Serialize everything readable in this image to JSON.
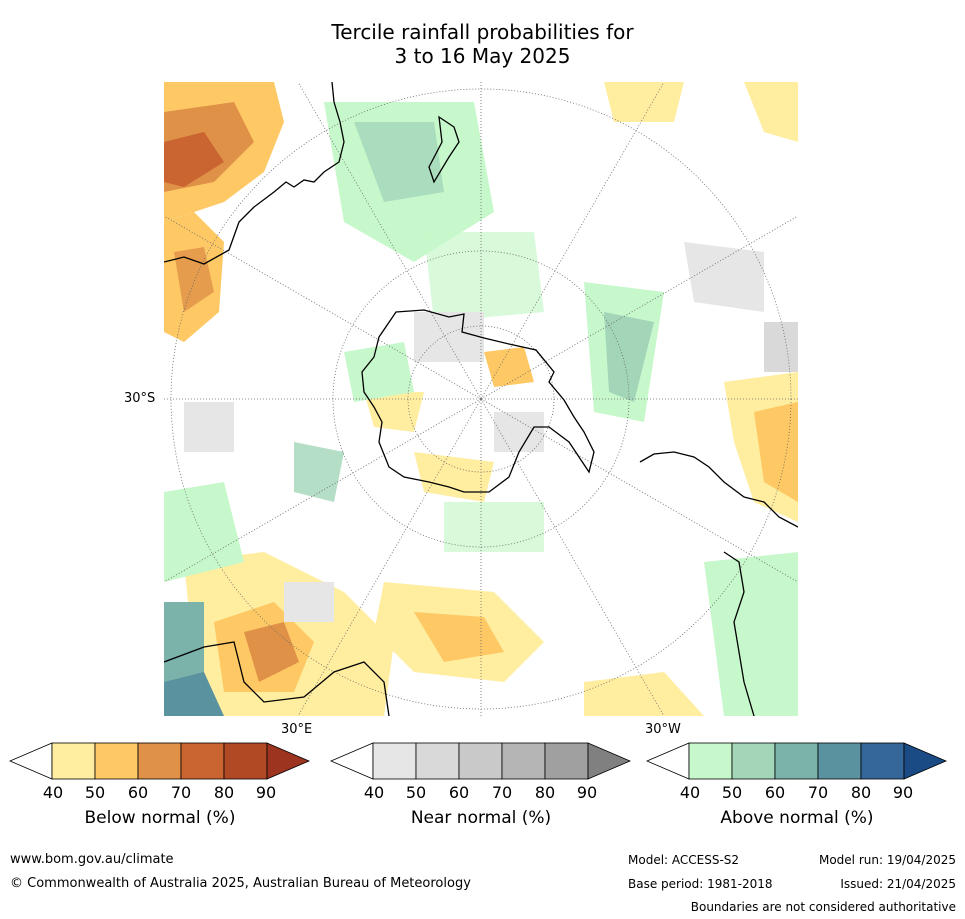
{
  "title": {
    "line1": "Tercile rainfall probabilities for",
    "line2": "3 to 16 May 2025"
  },
  "map": {
    "projection": "south-polar-stereographic",
    "lat_label": "30°S",
    "lon_label_east": "30°E",
    "lon_label_west": "30°W"
  },
  "colorbars": [
    {
      "name": "below",
      "label": "Below normal (%)",
      "ticks": [
        "40",
        "50",
        "60",
        "70",
        "80",
        "90"
      ],
      "colors": [
        "#ffffff",
        "#ffeda0",
        "#fec965",
        "#df9147",
        "#ca6431",
        "#b24925",
        "#9c3420"
      ]
    },
    {
      "name": "near",
      "label": "Near normal (%)",
      "ticks": [
        "40",
        "50",
        "60",
        "70",
        "80",
        "90"
      ],
      "colors": [
        "#ffffff",
        "#e6e6e6",
        "#d9d9d9",
        "#c9c9c9",
        "#b5b5b5",
        "#a0a0a0",
        "#808080"
      ]
    },
    {
      "name": "above",
      "label": "Above normal (%)",
      "ticks": [
        "40",
        "50",
        "60",
        "70",
        "80",
        "90"
      ],
      "colors": [
        "#ffffff",
        "#c7f8cb",
        "#a3d6b9",
        "#7bb3ab",
        "#5b929f",
        "#36679a",
        "#1a4b85"
      ]
    }
  ],
  "footer": {
    "url": "www.bom.gov.au/climate",
    "copyright": "© Commonwealth of Australia 2025, Australian Bureau of Meteorology",
    "model": "Model: ACCESS-S2",
    "base_period": "Base period: 1981-2018",
    "model_run": "Model run: 19/04/2025",
    "issued": "Issued: 21/04/2025",
    "disclaimer": "Boundaries are not considered authoritative"
  }
}
